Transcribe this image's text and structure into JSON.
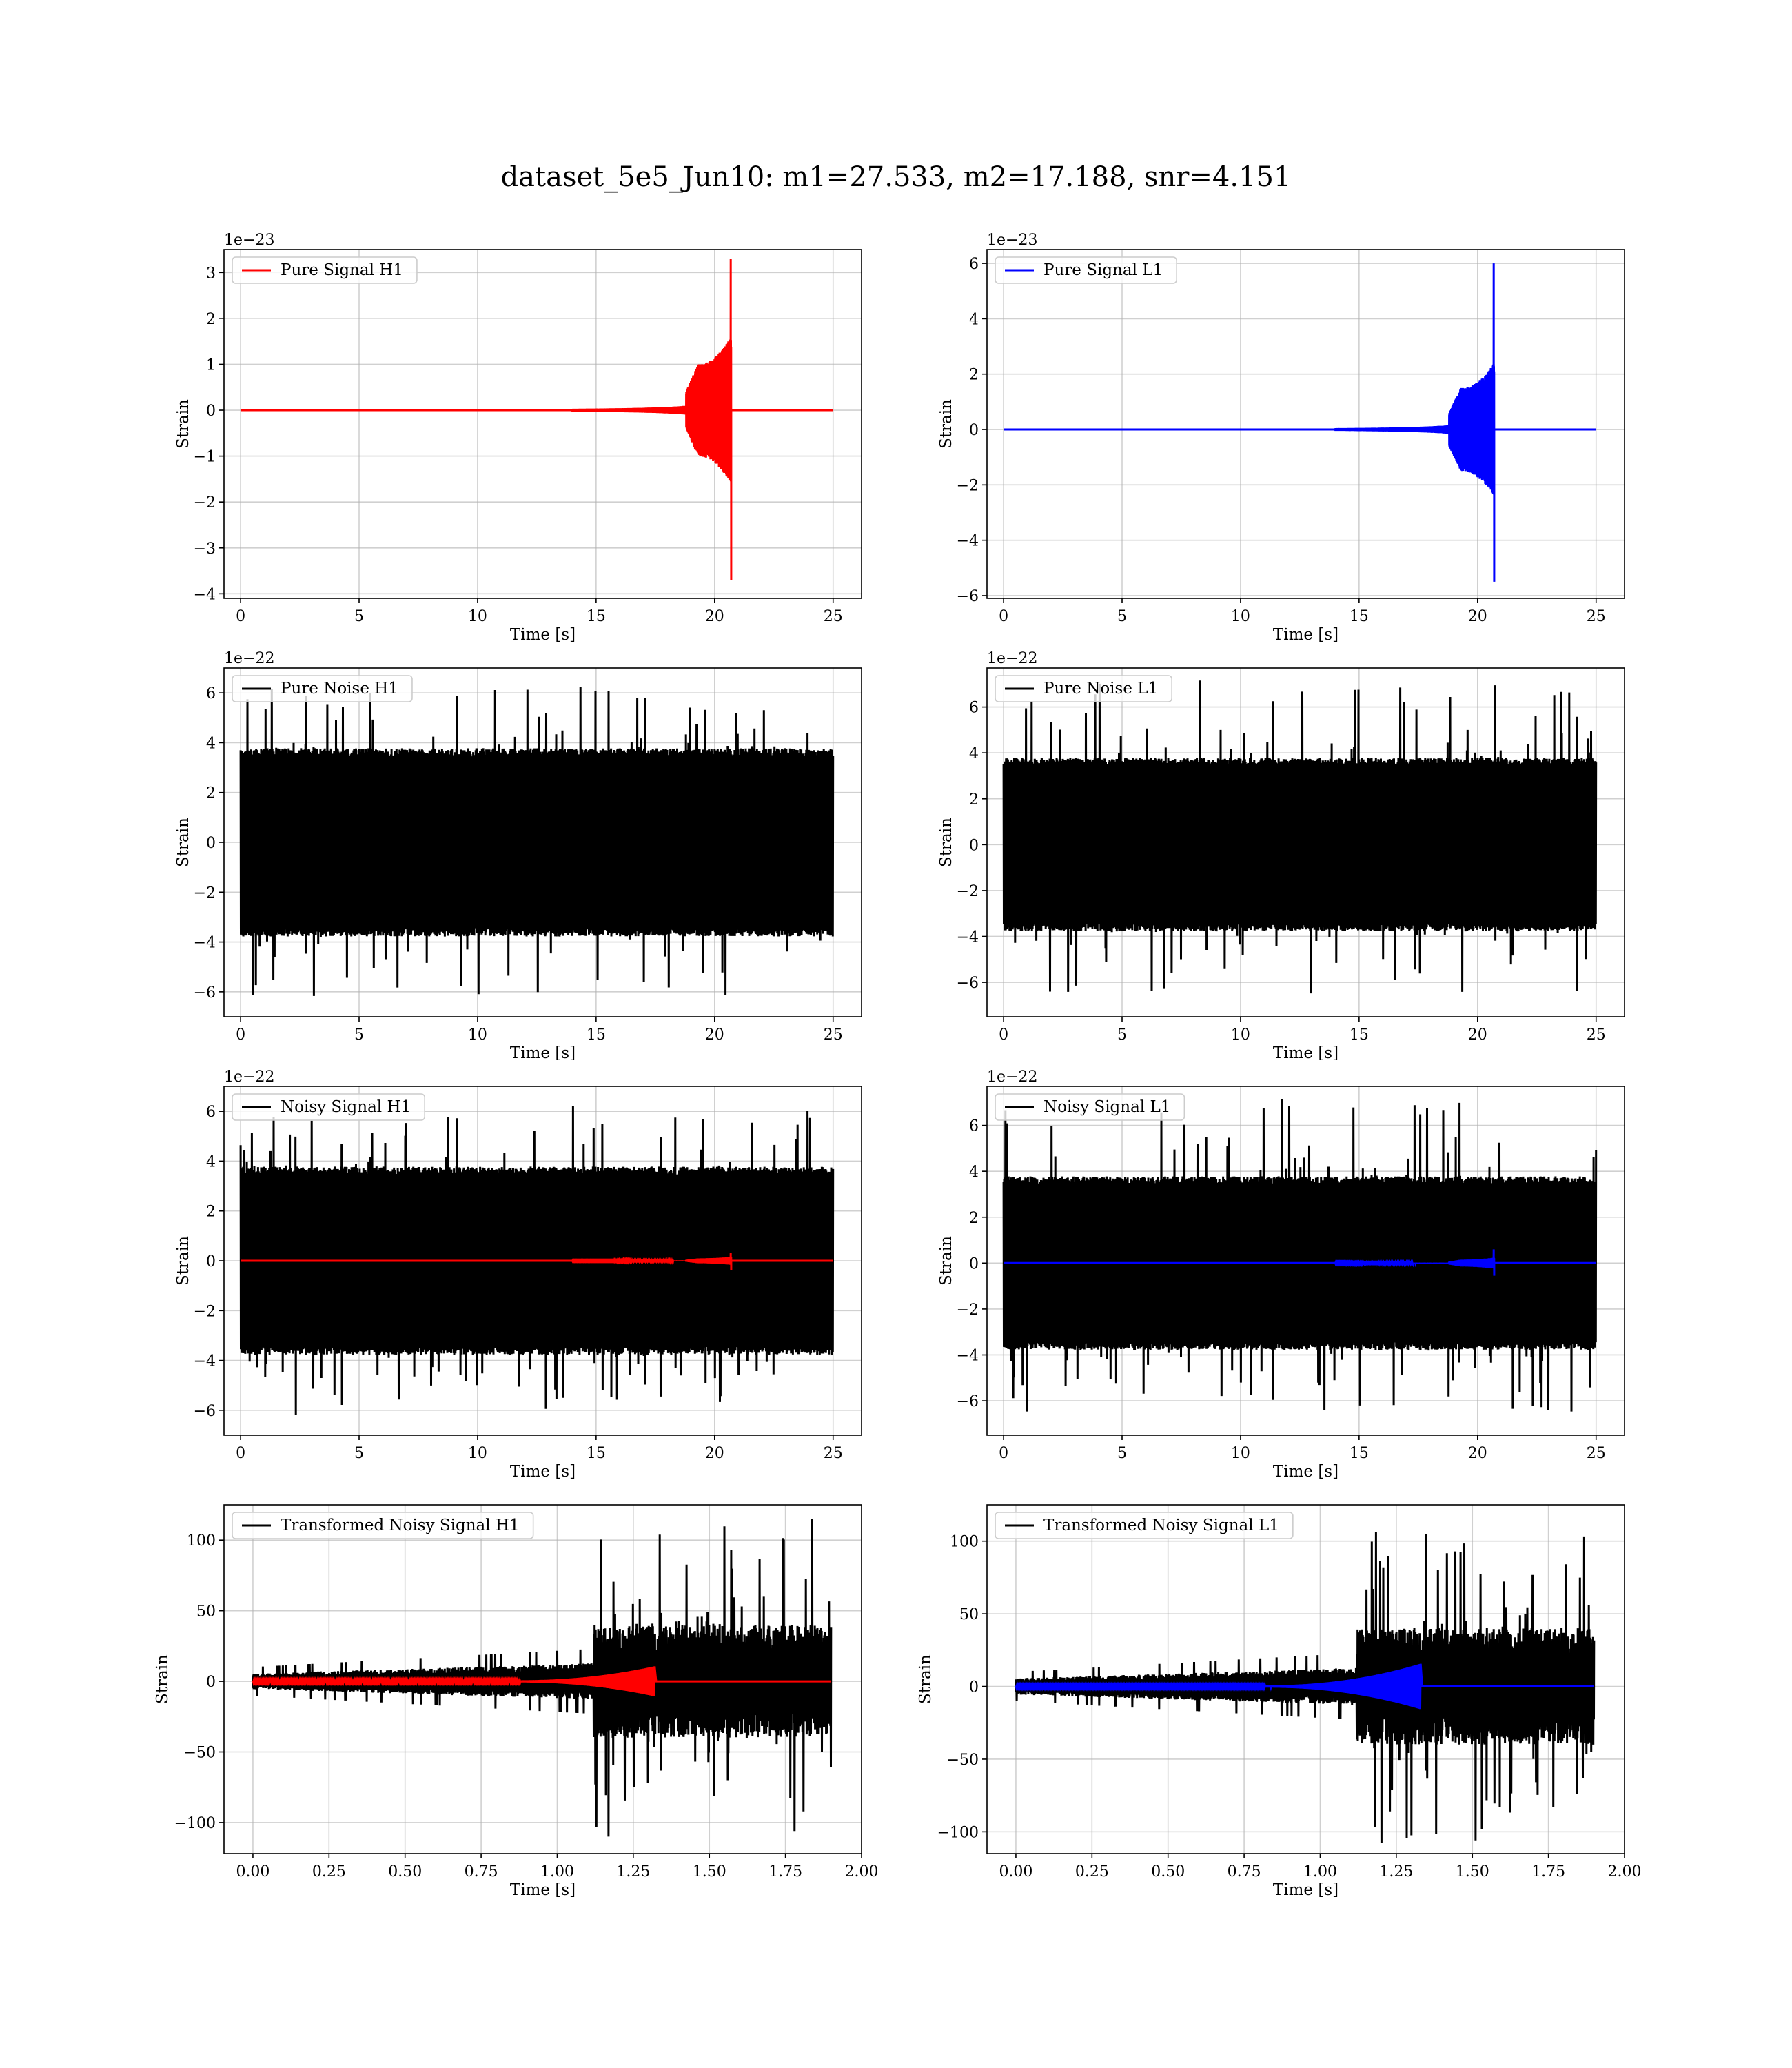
{
  "figure": {
    "title": "dataset_5e5_Jun10: m1=27.533, m2=17.188, snr=4.151"
  },
  "colors": {
    "h1_signal": "#ff0000",
    "l1_signal": "#0000ff",
    "noise": "#000000",
    "grid": "#b0b0b0"
  },
  "chart_data": [
    {
      "type": "line",
      "panel": "pure-signal-h1",
      "xlabel": "Time [s]",
      "ylabel": "Strain",
      "offset_text": "1e−23",
      "xlim": [
        -0.7,
        26.2
      ],
      "ylim": [
        -4.1,
        3.5
      ],
      "x_ticks": [
        0,
        5,
        10,
        15,
        20,
        25
      ],
      "x_tick_labels": [
        "0",
        "5",
        "10",
        "15",
        "20",
        "25"
      ],
      "y_ticks": [
        3,
        2,
        1,
        0,
        -1,
        -2,
        -3,
        -4
      ],
      "y_tick_labels": [
        "3",
        "2",
        "1",
        "0",
        "−1",
        "−2",
        "−3",
        "−4"
      ],
      "grid": true,
      "legend_position": "top-left",
      "series": [
        {
          "name": "Pure Signal H1",
          "color": "#ff0000",
          "kind": "chirp",
          "amp_pos": 3.3,
          "amp_neg": 3.7,
          "t_start": 14,
          "t_merge": 20.7,
          "t_end": 25,
          "plateau_start": 18.8,
          "plateau_end": 19.3,
          "plateau_amp": 1.0
        }
      ]
    },
    {
      "type": "line",
      "panel": "pure-signal-l1",
      "xlabel": "Time [s]",
      "ylabel": "Strain",
      "offset_text": "1e−23",
      "xlim": [
        -0.7,
        26.2
      ],
      "ylim": [
        -6.1,
        6.5
      ],
      "x_ticks": [
        0,
        5,
        10,
        15,
        20,
        25
      ],
      "x_tick_labels": [
        "0",
        "5",
        "10",
        "15",
        "20",
        "25"
      ],
      "y_ticks": [
        6,
        4,
        2,
        0,
        -2,
        -4,
        -6
      ],
      "y_tick_labels": [
        "6",
        "4",
        "2",
        "0",
        "−2",
        "−4",
        "−6"
      ],
      "grid": true,
      "legend_position": "top-left",
      "series": [
        {
          "name": "Pure Signal L1",
          "color": "#0000ff",
          "kind": "chirp",
          "amp_pos": 6.0,
          "amp_neg": 5.5,
          "t_start": 14,
          "t_merge": 20.7,
          "t_end": 25,
          "plateau_start": 18.8,
          "plateau_end": 19.3,
          "plateau_amp": 1.5
        }
      ]
    },
    {
      "type": "line",
      "panel": "pure-noise-h1",
      "xlabel": "Time [s]",
      "ylabel": "Strain",
      "offset_text": "1e−22",
      "xlim": [
        -0.7,
        26.2
      ],
      "ylim": [
        -7.0,
        7.0
      ],
      "x_ticks": [
        0,
        5,
        10,
        15,
        20,
        25
      ],
      "x_tick_labels": [
        "0",
        "5",
        "10",
        "15",
        "20",
        "25"
      ],
      "y_ticks": [
        6,
        4,
        2,
        0,
        -2,
        -4,
        -6
      ],
      "y_tick_labels": [
        "6",
        "4",
        "2",
        "0",
        "−2",
        "−4",
        "−6"
      ],
      "grid": true,
      "legend_position": "top-left",
      "series": [
        {
          "name": "Pure Noise H1",
          "color": "#000000",
          "kind": "noise",
          "band": 3.6,
          "spike_max": 6.3,
          "spike_min": -6.2,
          "t_start": 0,
          "t_end": 25
        }
      ]
    },
    {
      "type": "line",
      "panel": "pure-noise-l1",
      "xlabel": "Time [s]",
      "ylabel": "Strain",
      "offset_text": "1e−22",
      "xlim": [
        -0.7,
        26.2
      ],
      "ylim": [
        -7.5,
        7.7
      ],
      "x_ticks": [
        0,
        5,
        10,
        15,
        20,
        25
      ],
      "x_tick_labels": [
        "0",
        "5",
        "10",
        "15",
        "20",
        "25"
      ],
      "y_ticks": [
        6,
        4,
        2,
        0,
        -2,
        -4,
        -6
      ],
      "y_tick_labels": [
        "6",
        "4",
        "2",
        "0",
        "−2",
        "−4",
        "−6"
      ],
      "grid": true,
      "legend_position": "top-left",
      "series": [
        {
          "name": "Pure Noise L1",
          "color": "#000000",
          "kind": "noise",
          "band": 3.6,
          "spike_max": 7.2,
          "spike_min": -6.6,
          "t_start": 0,
          "t_end": 25
        }
      ]
    },
    {
      "type": "line",
      "panel": "noisy-signal-h1",
      "xlabel": "Time [s]",
      "ylabel": "Strain",
      "offset_text": "1e−22",
      "xlim": [
        -0.7,
        26.2
      ],
      "ylim": [
        -7.0,
        7.0
      ],
      "x_ticks": [
        0,
        5,
        10,
        15,
        20,
        25
      ],
      "x_tick_labels": [
        "0",
        "5",
        "10",
        "15",
        "20",
        "25"
      ],
      "y_ticks": [
        6,
        4,
        2,
        0,
        -2,
        -4,
        -6
      ],
      "y_tick_labels": [
        "6",
        "4",
        "2",
        "0",
        "−2",
        "−4",
        "−6"
      ],
      "grid": true,
      "legend_position": "top-left",
      "series": [
        {
          "name": "Noisy Signal H1",
          "color": "#000000",
          "kind": "noise",
          "band": 3.6,
          "spike_max": 6.3,
          "spike_min": -6.2,
          "t_start": 0,
          "t_end": 25
        },
        {
          "name": "",
          "color": "#ff0000",
          "kind": "chirp",
          "amp_pos": 0.33,
          "amp_neg": 0.37,
          "t_start": 14,
          "t_merge": 20.7,
          "t_end": 25,
          "plateau_start": 18.8,
          "plateau_end": 19.3,
          "plateau_amp": 0.1
        }
      ]
    },
    {
      "type": "line",
      "panel": "noisy-signal-l1",
      "xlabel": "Time [s]",
      "ylabel": "Strain",
      "offset_text": "1e−22",
      "xlim": [
        -0.7,
        26.2
      ],
      "ylim": [
        -7.5,
        7.7
      ],
      "x_ticks": [
        0,
        5,
        10,
        15,
        20,
        25
      ],
      "x_tick_labels": [
        "0",
        "5",
        "10",
        "15",
        "20",
        "25"
      ],
      "y_ticks": [
        6,
        4,
        2,
        0,
        -2,
        -4,
        -6
      ],
      "y_tick_labels": [
        "6",
        "4",
        "2",
        "0",
        "−2",
        "−4",
        "−6"
      ],
      "grid": true,
      "legend_position": "top-left",
      "series": [
        {
          "name": "Noisy Signal L1",
          "color": "#000000",
          "kind": "noise",
          "band": 3.6,
          "spike_max": 7.2,
          "spike_min": -6.6,
          "t_start": 0,
          "t_end": 25
        },
        {
          "name": "",
          "color": "#0000ff",
          "kind": "chirp",
          "amp_pos": 0.6,
          "amp_neg": 0.55,
          "t_start": 14,
          "t_merge": 20.7,
          "t_end": 25,
          "plateau_start": 18.8,
          "plateau_end": 19.3,
          "plateau_amp": 0.15
        }
      ]
    },
    {
      "type": "line",
      "panel": "transformed-noisy-signal-h1",
      "xlabel": "Time [s]",
      "ylabel": "Strain",
      "offset_text": "",
      "xlim": [
        -0.095,
        2.0
      ],
      "ylim": [
        -122,
        125
      ],
      "x_ticks": [
        0,
        0.25,
        0.5,
        0.75,
        1.0,
        1.25,
        1.5,
        1.75,
        2.0
      ],
      "x_tick_labels": [
        "0.00",
        "0.25",
        "0.50",
        "0.75",
        "1.00",
        "1.25",
        "1.50",
        "1.75",
        "2.00"
      ],
      "y_ticks": [
        100,
        50,
        0,
        -50,
        -100
      ],
      "y_tick_labels": [
        "100",
        "50",
        "0",
        "−50",
        "−100"
      ],
      "grid": true,
      "legend_position": "top-left",
      "series": [
        {
          "name": "Transformed Noisy Signal H1",
          "color": "#000000",
          "kind": "transformed",
          "t_start": 0,
          "t_jump": 1.12,
          "t_end": 1.9,
          "early_amp": 8,
          "late_amp": 40,
          "spike_max": 115,
          "spike_min": -115
        },
        {
          "name": "",
          "color": "#ff0000",
          "kind": "ringup",
          "t_start": 0,
          "t_grow": 0.85,
          "t_merge": 1.32,
          "t_end": 1.9,
          "amp": 10
        }
      ]
    },
    {
      "type": "line",
      "panel": "transformed-noisy-signal-l1",
      "xlabel": "Time [s]",
      "ylabel": "Strain",
      "offset_text": "",
      "xlim": [
        -0.095,
        2.0
      ],
      "ylim": [
        -115,
        125
      ],
      "x_ticks": [
        0,
        0.25,
        0.5,
        0.75,
        1.0,
        1.25,
        1.5,
        1.75,
        2.0
      ],
      "x_tick_labels": [
        "0.00",
        "0.25",
        "0.50",
        "0.75",
        "1.00",
        "1.25",
        "1.50",
        "1.75",
        "2.00"
      ],
      "y_ticks": [
        100,
        50,
        0,
        -50,
        -100
      ],
      "y_tick_labels": [
        "100",
        "50",
        "0",
        "−50",
        "−100"
      ],
      "grid": true,
      "legend_position": "top-left",
      "series": [
        {
          "name": "Transformed Noisy Signal L1",
          "color": "#000000",
          "kind": "transformed",
          "t_start": 0,
          "t_jump": 1.12,
          "t_end": 1.9,
          "early_amp": 8,
          "late_amp": 40,
          "spike_max": 118,
          "spike_min": -108
        },
        {
          "name": "",
          "color": "#0000ff",
          "kind": "ringup",
          "t_start": 0,
          "t_grow": 0.8,
          "t_merge": 1.33,
          "t_end": 1.9,
          "amp": 15
        }
      ]
    }
  ]
}
